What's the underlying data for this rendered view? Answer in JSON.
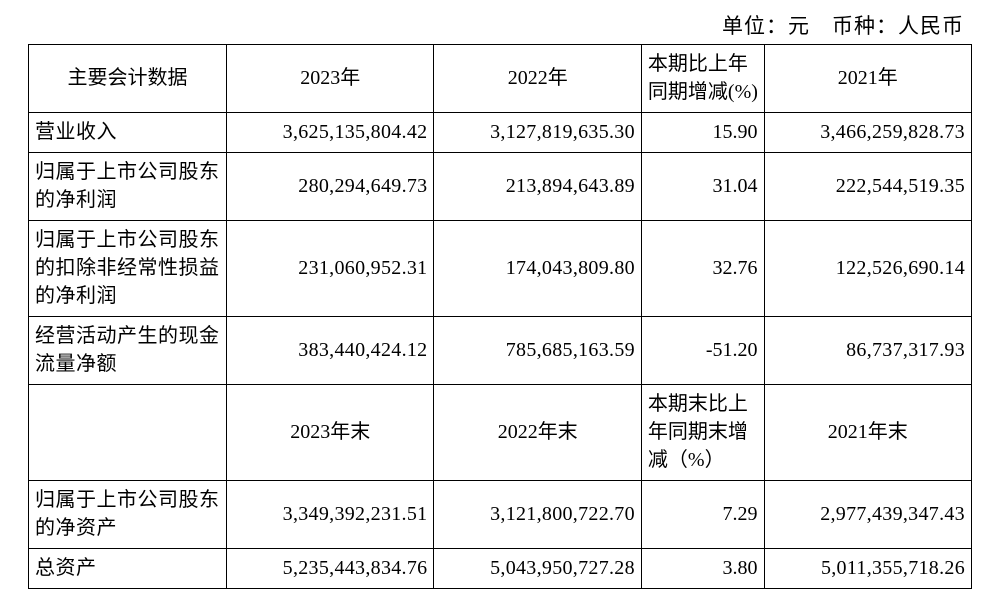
{
  "unit_line": "单位：元　币种：人民币",
  "table": {
    "type": "table",
    "border_color": "#000000",
    "background_color": "#ffffff",
    "font_size_pt": 15,
    "column_widths_pct": [
      21,
      22,
      22,
      13,
      22
    ],
    "column_align": [
      "left",
      "right",
      "right",
      "right",
      "right"
    ],
    "header1": {
      "c1": "主要会计数据",
      "c2": "2023年",
      "c3": "2022年",
      "c4": "本期比上年同期增减(%)",
      "c5": "2021年"
    },
    "rows1": [
      {
        "label": "营业收入",
        "y2023": "3,625,135,804.42",
        "y2022": "3,127,819,635.30",
        "chg": "15.90",
        "y2021": "3,466,259,828.73"
      },
      {
        "label": "归属于上市公司股东的净利润",
        "y2023": "280,294,649.73",
        "y2022": "213,894,643.89",
        "chg": "31.04",
        "y2021": "222,544,519.35"
      },
      {
        "label": "归属于上市公司股东的扣除非经常性损益的净利润",
        "y2023": "231,060,952.31",
        "y2022": "174,043,809.80",
        "chg": "32.76",
        "y2021": "122,526,690.14"
      },
      {
        "label": "经营活动产生的现金流量净额",
        "y2023": "383,440,424.12",
        "y2022": "785,685,163.59",
        "chg": "-51.20",
        "y2021": "86,737,317.93"
      }
    ],
    "header2": {
      "c1": "",
      "c2": "2023年末",
      "c3": "2022年末",
      "c4": "本期末比上年同期末增减（%）",
      "c5": "2021年末"
    },
    "rows2": [
      {
        "label": "归属于上市公司股东的净资产",
        "y2023": "3,349,392,231.51",
        "y2022": "3,121,800,722.70",
        "chg": "7.29",
        "y2021": "2,977,439,347.43"
      },
      {
        "label": "总资产",
        "y2023": "5,235,443,834.76",
        "y2022": "5,043,950,727.28",
        "chg": "3.80",
        "y2021": "5,011,355,718.26"
      }
    ]
  }
}
